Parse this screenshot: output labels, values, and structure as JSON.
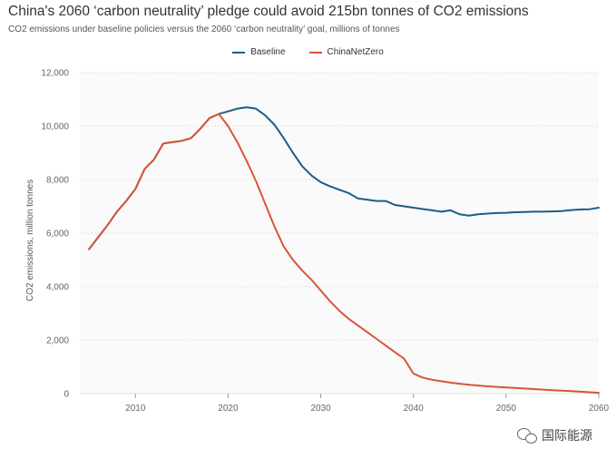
{
  "chart_data": {
    "type": "line",
    "title": "China's 2060 ‘carbon neutrality’ pledge could avoid 215bn tonnes of CO2 emissions",
    "subtitle": "CO2 emissions under baseline policies versus the 2060 ‘carbon neutrality’ goal, millions of tonnes",
    "xlabel": "",
    "ylabel": "CO2 emissions, million tonnes",
    "xlim": [
      2004,
      2060
    ],
    "ylim": [
      0,
      12000
    ],
    "xticks": [
      2010,
      2020,
      2030,
      2040,
      2050,
      2060
    ],
    "xtick_labels": [
      "2010",
      "2020",
      "2030",
      "2040",
      "2050",
      "2060"
    ],
    "yticks": [
      0,
      2000,
      4000,
      6000,
      8000,
      10000,
      12000
    ],
    "ytick_labels": [
      "0",
      "2,000",
      "4,000",
      "6,000",
      "8,000",
      "10,000",
      "12,000"
    ],
    "legend_position": "top-center",
    "series": [
      {
        "name": "Baseline",
        "color": "#1e5c87",
        "x": [
          2005,
          2006,
          2007,
          2008,
          2009,
          2010,
          2011,
          2012,
          2013,
          2014,
          2015,
          2016,
          2017,
          2018,
          2019,
          2020,
          2021,
          2022,
          2023,
          2024,
          2025,
          2026,
          2027,
          2028,
          2029,
          2030,
          2031,
          2032,
          2033,
          2034,
          2035,
          2036,
          2037,
          2038,
          2039,
          2040,
          2041,
          2042,
          2043,
          2044,
          2045,
          2046,
          2047,
          2048,
          2049,
          2050,
          2051,
          2052,
          2053,
          2054,
          2055,
          2056,
          2057,
          2058,
          2059,
          2060
        ],
        "values": [
          5400,
          5850,
          6300,
          6800,
          7200,
          7650,
          8400,
          8750,
          9350,
          9400,
          9450,
          9550,
          9900,
          10300,
          10450,
          10550,
          10650,
          10700,
          10650,
          10400,
          10050,
          9550,
          9000,
          8500,
          8150,
          7900,
          7750,
          7620,
          7500,
          7300,
          7250,
          7200,
          7200,
          7050,
          7000,
          6950,
          6900,
          6850,
          6800,
          6850,
          6700,
          6650,
          6700,
          6730,
          6750,
          6760,
          6780,
          6790,
          6800,
          6800,
          6810,
          6820,
          6860,
          6880,
          6890,
          6950
        ]
      },
      {
        "name": "ChinaNetZero",
        "color": "#d9543b",
        "x": [
          2005,
          2006,
          2007,
          2008,
          2009,
          2010,
          2011,
          2012,
          2013,
          2014,
          2015,
          2016,
          2017,
          2018,
          2019,
          2020,
          2021,
          2022,
          2023,
          2024,
          2025,
          2026,
          2027,
          2028,
          2029,
          2030,
          2031,
          2032,
          2033,
          2034,
          2035,
          2036,
          2037,
          2038,
          2039,
          2040,
          2041,
          2042,
          2043,
          2044,
          2045,
          2046,
          2047,
          2048,
          2049,
          2050,
          2051,
          2052,
          2053,
          2054,
          2055,
          2056,
          2057,
          2058,
          2059,
          2060
        ],
        "values": [
          5400,
          5850,
          6300,
          6800,
          7200,
          7650,
          8400,
          8750,
          9350,
          9400,
          9450,
          9550,
          9900,
          10300,
          10450,
          10000,
          9400,
          8700,
          7950,
          7100,
          6250,
          5500,
          5000,
          4600,
          4250,
          3850,
          3450,
          3100,
          2800,
          2550,
          2300,
          2050,
          1800,
          1550,
          1300,
          750,
          600,
          520,
          460,
          410,
          370,
          330,
          300,
          270,
          250,
          230,
          210,
          190,
          170,
          150,
          130,
          110,
          90,
          70,
          50,
          30
        ]
      }
    ]
  },
  "watermark": {
    "text": "国际能源"
  }
}
